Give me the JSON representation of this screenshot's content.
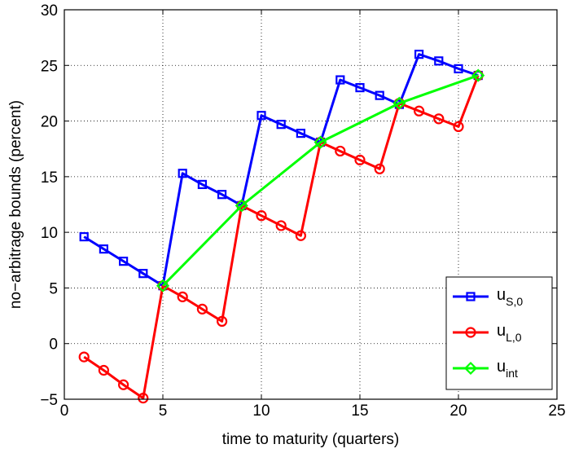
{
  "chart_data": {
    "type": "line",
    "title": "",
    "xlabel": "time to maturity (quarters)",
    "ylabel": "no−arbitrage bounds (percent)",
    "xlim": [
      0,
      25
    ],
    "ylim": [
      -5,
      30
    ],
    "xticks": [
      "0",
      "5",
      "10",
      "15",
      "20",
      "25"
    ],
    "yticks": [
      "−5",
      "0",
      "5",
      "10",
      "15",
      "20",
      "25",
      "30"
    ],
    "grid": true,
    "legend_position": "bottom-right",
    "series": [
      {
        "name_main": "u",
        "name_sub": "S,0",
        "color": "#0000ff",
        "marker": "square",
        "x": [
          1,
          2,
          3,
          4,
          5,
          6,
          7,
          8,
          9,
          10,
          11,
          12,
          13,
          14,
          15,
          16,
          17,
          18,
          19,
          20,
          21
        ],
        "y": [
          9.6,
          8.5,
          7.4,
          6.3,
          5.2,
          15.3,
          14.3,
          13.4,
          12.4,
          20.5,
          19.7,
          18.9,
          18.1,
          23.7,
          23.0,
          22.3,
          21.5,
          26.0,
          25.4,
          24.7,
          24.1
        ]
      },
      {
        "name_main": "u",
        "name_sub": "L,0",
        "color": "#ff0000",
        "marker": "circle",
        "x": [
          1,
          2,
          3,
          4,
          5,
          6,
          7,
          8,
          9,
          10,
          11,
          12,
          13,
          14,
          15,
          16,
          17,
          18,
          19,
          20,
          21
        ],
        "y": [
          -1.2,
          -2.4,
          -3.7,
          -4.9,
          5.2,
          4.2,
          3.1,
          2.0,
          12.4,
          11.5,
          10.6,
          9.7,
          18.1,
          17.3,
          16.5,
          15.7,
          21.6,
          20.9,
          20.2,
          19.5,
          24.1
        ]
      },
      {
        "name_main": "u",
        "name_sub": "int",
        "color": "#00ff00",
        "marker": "diamond",
        "x": [
          5,
          9,
          13,
          17,
          21
        ],
        "y": [
          5.2,
          12.4,
          18.1,
          21.6,
          24.1
        ]
      }
    ]
  }
}
